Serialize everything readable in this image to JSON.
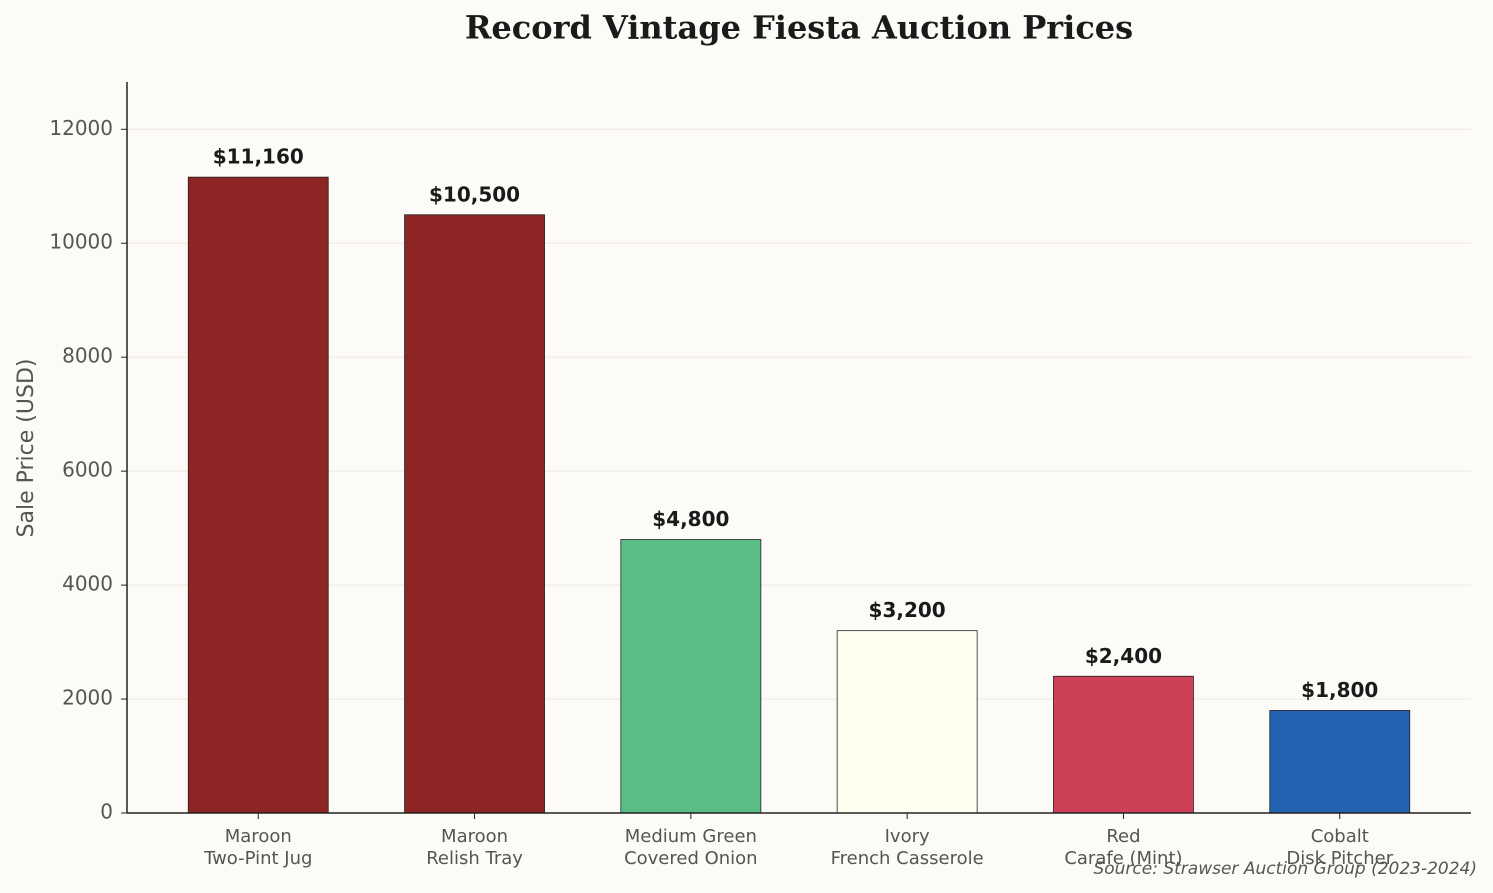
{
  "chart_data": {
    "type": "bar",
    "title": "Record Vintage Fiesta Auction Prices",
    "y_label": "Sale Price (USD)",
    "source": "Source: Strawser Auction Group (2023-2024)",
    "categories": [
      [
        "Maroon",
        "Two-Pint Jug"
      ],
      [
        "Maroon",
        "Relish Tray"
      ],
      [
        "Medium Green",
        "Covered Onion"
      ],
      [
        "Ivory",
        "French Casserole"
      ],
      [
        "Red",
        "Carafe (Mint)"
      ],
      [
        "Cobalt",
        "Disk Pitcher"
      ]
    ],
    "values": [
      11160,
      10500,
      4800,
      3200,
      2400,
      1800
    ],
    "value_labels": [
      "$11,160",
      "$10,500",
      "$4,800",
      "$3,200",
      "$2,400",
      "$1,800"
    ],
    "colors": [
      "#8e2424",
      "#8e2424",
      "#5bbd86",
      "#fffff0",
      "#cd4057",
      "#2462b3"
    ],
    "ylim": [
      0,
      12830
    ],
    "yticks": [
      0,
      2000,
      4000,
      6000,
      8000,
      10000,
      12000
    ],
    "grid": true
  }
}
